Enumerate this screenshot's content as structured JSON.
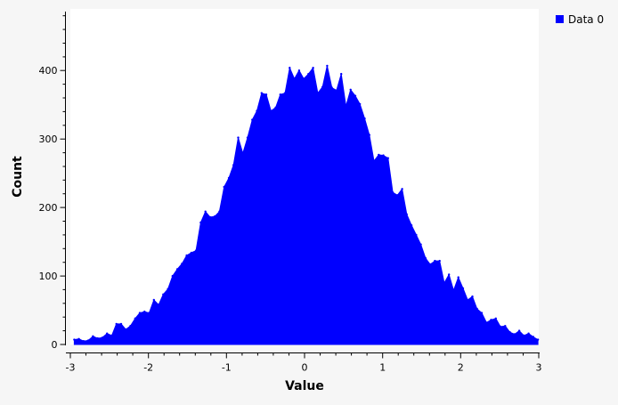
{
  "chart_data": {
    "type": "area",
    "title": "",
    "xlabel": "Value",
    "ylabel": "Count",
    "xlim": [
      -3,
      3
    ],
    "ylim": [
      0,
      490
    ],
    "grid": false,
    "legend_position": "top-right",
    "x_ticks": [
      -3,
      -2,
      -1,
      0,
      1,
      2,
      3
    ],
    "y_ticks": [
      0,
      100,
      200,
      300,
      400
    ],
    "x_tick_labels": [
      "-3",
      "-2",
      "-1",
      "0",
      "1",
      "2",
      "3"
    ],
    "y_tick_labels": [
      "0",
      "100",
      "200",
      "300",
      "400"
    ],
    "series": [
      {
        "name": "Data 0",
        "color": "#0000ff",
        "x": [
          -2.95,
          -2.89,
          -2.83,
          -2.77,
          -2.71,
          -2.65,
          -2.59,
          -2.53,
          -2.47,
          -2.41,
          -2.35,
          -2.29,
          -2.23,
          -2.17,
          -2.11,
          -2.05,
          -1.99,
          -1.93,
          -1.87,
          -1.81,
          -1.75,
          -1.69,
          -1.63,
          -1.57,
          -1.51,
          -1.45,
          -1.39,
          -1.33,
          -1.27,
          -1.21,
          -1.15,
          -1.09,
          -1.03,
          -0.97,
          -0.91,
          -0.85,
          -0.79,
          -0.73,
          -0.67,
          -0.61,
          -0.55,
          -0.49,
          -0.43,
          -0.37,
          -0.31,
          -0.25,
          -0.19,
          -0.13,
          -0.07,
          -0.01,
          0.05,
          0.11,
          0.17,
          0.23,
          0.29,
          0.35,
          0.41,
          0.47,
          0.53,
          0.59,
          0.65,
          0.71,
          0.77,
          0.83,
          0.89,
          0.95,
          1.01,
          1.07,
          1.13,
          1.19,
          1.25,
          1.31,
          1.37,
          1.43,
          1.49,
          1.55,
          1.61,
          1.67,
          1.73,
          1.79,
          1.85,
          1.91,
          1.97,
          2.03,
          2.09,
          2.15,
          2.21,
          2.27,
          2.33,
          2.39,
          2.45,
          2.51,
          2.57,
          2.63,
          2.69,
          2.75,
          2.81,
          2.87,
          2.93,
          2.99
        ],
        "values": [
          7,
          8,
          5,
          6,
          12,
          9,
          10,
          16,
          13,
          30,
          30,
          22,
          27,
          38,
          46,
          48,
          46,
          65,
          58,
          73,
          81,
          100,
          110,
          118,
          130,
          134,
          137,
          178,
          194,
          186,
          187,
          194,
          230,
          243,
          262,
          302,
          279,
          302,
          328,
          341,
          367,
          365,
          341,
          346,
          365,
          367,
          404,
          388,
          400,
          388,
          395,
          404,
          367,
          376,
          407,
          375,
          371,
          395,
          348,
          372,
          363,
          351,
          330,
          306,
          268,
          277,
          276,
          272,
          222,
          218,
          227,
          190,
          174,
          160,
          146,
          126,
          117,
          122,
          122,
          90,
          102,
          79,
          98,
          82,
          65,
          70,
          52,
          46,
          32,
          36,
          38,
          26,
          27,
          18,
          15,
          20,
          13,
          16,
          11,
          7
        ]
      }
    ]
  }
}
